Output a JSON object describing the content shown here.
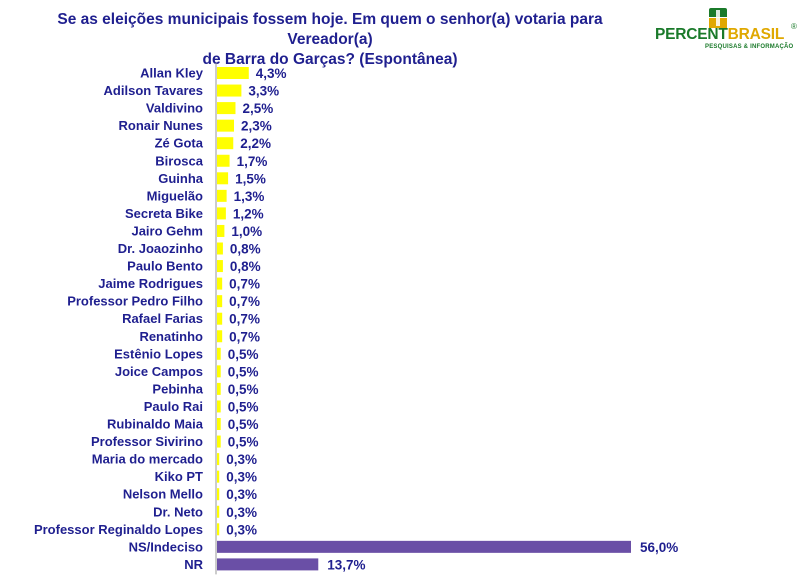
{
  "title_line1": "Se as eleições municipais fossem hoje. Em quem o senhor(a) votaria para  Vereador(a)",
  "title_line2": "de Barra do Garças? (Espontânea)",
  "logo": {
    "name_part1": "PERCENT",
    "name_part2": "BRASIL",
    "registered": "®",
    "tagline": "PESQUISAS & INFORMAÇÃO",
    "colors": {
      "green": "#1a7a2a",
      "gold": "#e0a800"
    }
  },
  "chart_data": {
    "type": "bar",
    "orientation": "horizontal",
    "title": "Se as eleições municipais fossem hoje. Em quem o senhor(a) votaria para  Vereador(a) de Barra do Garças? (Espontânea)",
    "categories": [
      "Allan Kley",
      "Adilson Tavares",
      "Valdivino",
      "Ronair Nunes",
      "Zé Gota",
      "Birosca",
      "Guinha",
      "Miguelão",
      "Secreta Bike",
      "Jairo Gehm",
      "Dr. Joaozinho",
      "Paulo Bento",
      "Jaime Rodrigues",
      "Professor Pedro Filho",
      "Rafael Farias",
      "Renatinho",
      "Estênio Lopes",
      "Joice Campos",
      "Pebinha",
      "Paulo Rai",
      "Rubinaldo Maia",
      "Professor Sivirino",
      "Maria do mercado",
      "Kiko PT",
      "Nelson Mello",
      "Dr. Neto",
      "Professor Reginaldo Lopes",
      "NS/Indeciso",
      "NR"
    ],
    "values": [
      4.3,
      3.3,
      2.5,
      2.3,
      2.2,
      1.7,
      1.5,
      1.3,
      1.2,
      1.0,
      0.8,
      0.8,
      0.7,
      0.7,
      0.7,
      0.7,
      0.5,
      0.5,
      0.5,
      0.5,
      0.5,
      0.5,
      0.3,
      0.3,
      0.3,
      0.3,
      0.3,
      56.0,
      13.7
    ],
    "value_labels": [
      "4,3%",
      "3,3%",
      "2,5%",
      "2,3%",
      "2,2%",
      "1,7%",
      "1,5%",
      "1,3%",
      "1,2%",
      "1,0%",
      "0,8%",
      "0,8%",
      "0,7%",
      "0,7%",
      "0,7%",
      "0,7%",
      "0,5%",
      "0,5%",
      "0,5%",
      "0,5%",
      "0,5%",
      "0,5%",
      "0,3%",
      "0,3%",
      "0,3%",
      "0,3%",
      "0,3%",
      "56,0%",
      "13,7%"
    ],
    "bar_colors": {
      "candidate": "#ffff00",
      "other": "#6a4fa6"
    },
    "xlim": [
      0,
      56.0
    ],
    "grid": false,
    "legend": "none"
  }
}
